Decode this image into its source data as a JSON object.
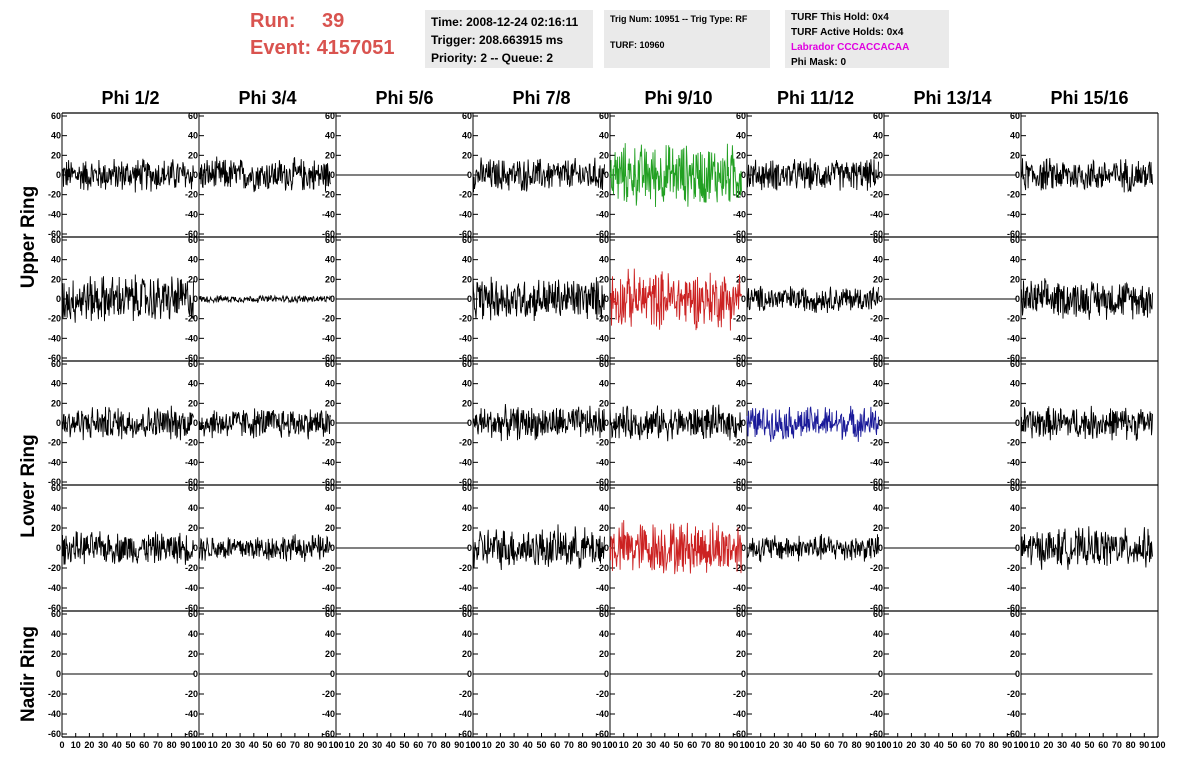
{
  "header": {
    "run_label": "Run:",
    "run_value": "39",
    "event_label": "Event:",
    "event_value": "4157051",
    "time": "Time: 2008-12-24 02:16:11",
    "trigger": "Trigger: 208.663915 ms",
    "priority": "Priority: 2 -- Queue: 2",
    "trig_num": "Trig Num: 10951 -- Trig Type: RF",
    "turf": "TURF: 10960",
    "turf_this_hold": "TURF This Hold: 0x4",
    "turf_active_holds": "TURF Active Holds: 0x4",
    "labrador": "Labrador CCCACCACAA",
    "phi_mask": "Phi Mask: 0"
  },
  "chart_data": {
    "type": "line",
    "columns": [
      "Phi 1/2",
      "Phi 3/4",
      "Phi 5/6",
      "Phi 7/8",
      "Phi 9/10",
      "Phi 11/12",
      "Phi 13/14",
      "Phi 15/16"
    ],
    "rows": [
      {
        "label": "Upper Ring",
        "group": "upper"
      },
      {
        "label": "",
        "group": "upper"
      },
      {
        "label": "Lower Ring",
        "group": "lower"
      },
      {
        "label": "",
        "group": "lower"
      },
      {
        "label": "Nadir Ring",
        "group": "nadir"
      }
    ],
    "ylim": [
      -60,
      60
    ],
    "yticks": [
      -60,
      -40,
      -20,
      0,
      20,
      40,
      60
    ],
    "xlim": [
      0,
      100
    ],
    "xticks": [
      0,
      10,
      20,
      30,
      40,
      50,
      60,
      70,
      80,
      90,
      100
    ],
    "colors": {
      "default": "#000000",
      "green": "#22a022",
      "red": "#cc2222",
      "blue": "#1a1a99"
    },
    "panels": [
      [
        {
          "amp": 14,
          "color": "default"
        },
        {
          "amp": 14,
          "color": "default"
        },
        {
          "amp": 0,
          "color": "default"
        },
        {
          "amp": 14,
          "color": "default"
        },
        {
          "amp": 26,
          "color": "green"
        },
        {
          "amp": 13,
          "color": "default"
        },
        {
          "amp": 0,
          "color": "default"
        },
        {
          "amp": 14,
          "color": "default"
        }
      ],
      [
        {
          "amp": 20,
          "color": "default"
        },
        {
          "amp": 3,
          "color": "default"
        },
        {
          "amp": 0,
          "color": "default"
        },
        {
          "amp": 18,
          "color": "default"
        },
        {
          "amp": 24,
          "color": "red"
        },
        {
          "amp": 11,
          "color": "default"
        },
        {
          "amp": 0,
          "color": "default"
        },
        {
          "amp": 16,
          "color": "default"
        }
      ],
      [
        {
          "amp": 14,
          "color": "default"
        },
        {
          "amp": 13,
          "color": "default"
        },
        {
          "amp": 0,
          "color": "default"
        },
        {
          "amp": 14,
          "color": "default"
        },
        {
          "amp": 14,
          "color": "default"
        },
        {
          "amp": 14,
          "color": "blue"
        },
        {
          "amp": 0,
          "color": "default"
        },
        {
          "amp": 14,
          "color": "default"
        }
      ],
      [
        {
          "amp": 13,
          "color": "default"
        },
        {
          "amp": 11,
          "color": "default"
        },
        {
          "amp": 0,
          "color": "default"
        },
        {
          "amp": 17,
          "color": "default"
        },
        {
          "amp": 22,
          "color": "red"
        },
        {
          "amp": 11,
          "color": "default"
        },
        {
          "amp": 0,
          "color": "default"
        },
        {
          "amp": 16,
          "color": "default"
        }
      ],
      [
        {
          "amp": 0,
          "color": "default"
        },
        {
          "amp": 0,
          "color": "default"
        },
        {
          "amp": 0,
          "color": "default"
        },
        {
          "amp": 0,
          "color": "default"
        },
        {
          "amp": 0,
          "color": "default"
        },
        {
          "amp": 0,
          "color": "default"
        },
        {
          "amp": 0,
          "color": "default"
        },
        {
          "amp": 0,
          "color": "default"
        }
      ]
    ]
  }
}
